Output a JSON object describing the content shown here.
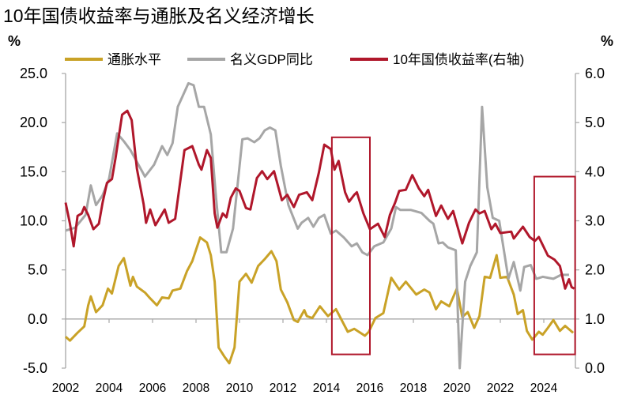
{
  "chart_data": {
    "type": "line",
    "title": "10年国债收益率与通胀及名义经济增长",
    "ylabel_left": "%",
    "ylabel_right": "%",
    "ylim_left": [
      -5,
      25
    ],
    "ylim_right": [
      0,
      6
    ],
    "yticks_left": [
      "25.0",
      "20.0",
      "15.0",
      "10.0",
      "5.0",
      "0.0",
      "-5.0"
    ],
    "yticks_right": [
      "6.0",
      "5.0",
      "4.0",
      "3.0",
      "2.0",
      "1.0",
      "0.0"
    ],
    "xlim": [
      2002,
      2025.45
    ],
    "xticks": [
      "2002",
      "2004",
      "2006",
      "2008",
      "2010",
      "2012",
      "2014",
      "2016",
      "2018",
      "2020",
      "2022",
      "2024"
    ],
    "grid": false,
    "legend_position": "top",
    "series": [
      {
        "name": "通胀水平",
        "axis": "left",
        "color": "#C9A227",
        "points": [
          [
            2002.0,
            -1.8
          ],
          [
            2002.2,
            -2.2
          ],
          [
            2002.55,
            -1.4
          ],
          [
            2002.86,
            -0.75
          ],
          [
            2003.04,
            1.4
          ],
          [
            2003.16,
            2.3
          ],
          [
            2003.4,
            0.7
          ],
          [
            2003.7,
            1.4
          ],
          [
            2003.95,
            3.1
          ],
          [
            2004.13,
            2.6
          ],
          [
            2004.44,
            5.4
          ],
          [
            2004.68,
            6.2
          ],
          [
            2004.98,
            3.4
          ],
          [
            2005.1,
            4.3
          ],
          [
            2005.28,
            3.3
          ],
          [
            2005.65,
            2.7
          ],
          [
            2005.89,
            2.1
          ],
          [
            2006.2,
            1.4
          ],
          [
            2006.44,
            2.2
          ],
          [
            2006.74,
            2.1
          ],
          [
            2006.92,
            2.9
          ],
          [
            2007.28,
            3.1
          ],
          [
            2007.59,
            4.9
          ],
          [
            2007.83,
            5.9
          ],
          [
            2008.19,
            8.3
          ],
          [
            2008.5,
            7.8
          ],
          [
            2008.68,
            6.5
          ],
          [
            2008.86,
            3.8
          ],
          [
            2009.04,
            -2.9
          ],
          [
            2009.3,
            -3.8
          ],
          [
            2009.53,
            -4.5
          ],
          [
            2009.77,
            -2.9
          ],
          [
            2010.0,
            3.8
          ],
          [
            2010.3,
            4.6
          ],
          [
            2010.56,
            3.7
          ],
          [
            2010.86,
            5.4
          ],
          [
            2011.16,
            6.1
          ],
          [
            2011.47,
            6.9
          ],
          [
            2011.7,
            5.9
          ],
          [
            2011.9,
            3.0
          ],
          [
            2012.2,
            1.7
          ],
          [
            2012.5,
            -0.1
          ],
          [
            2012.68,
            -0.3
          ],
          [
            2012.98,
            0.9
          ],
          [
            2013.1,
            0.3
          ],
          [
            2013.35,
            0.1
          ],
          [
            2013.7,
            1.3
          ],
          [
            2014.07,
            0.3
          ],
          [
            2014.44,
            1.0
          ],
          [
            2014.98,
            -1.3
          ],
          [
            2015.28,
            -1.0
          ],
          [
            2015.77,
            -1.7
          ],
          [
            2015.95,
            -1.3
          ],
          [
            2016.25,
            0.1
          ],
          [
            2016.62,
            0.6
          ],
          [
            2016.98,
            4.2
          ],
          [
            2017.35,
            3.0
          ],
          [
            2017.65,
            3.8
          ],
          [
            2018.13,
            2.5
          ],
          [
            2018.5,
            3.0
          ],
          [
            2018.74,
            2.7
          ],
          [
            2019.04,
            1.0
          ],
          [
            2019.28,
            1.8
          ],
          [
            2019.65,
            1.3
          ],
          [
            2020.0,
            3.1
          ],
          [
            2020.25,
            0.2
          ],
          [
            2020.5,
            0.7
          ],
          [
            2020.8,
            -0.9
          ],
          [
            2021.04,
            0.3
          ],
          [
            2021.28,
            4.3
          ],
          [
            2021.53,
            4.2
          ],
          [
            2021.83,
            6.5
          ],
          [
            2022.0,
            4.2
          ],
          [
            2022.31,
            4.3
          ],
          [
            2022.62,
            2.5
          ],
          [
            2022.8,
            0.5
          ],
          [
            2023.04,
            0.9
          ],
          [
            2023.22,
            -1.2
          ],
          [
            2023.47,
            -2.1
          ],
          [
            2023.77,
            -1.3
          ],
          [
            2023.95,
            -1.6
          ],
          [
            2024.19,
            -0.9
          ],
          [
            2024.44,
            -0.1
          ],
          [
            2024.74,
            -1.2
          ],
          [
            2024.98,
            -0.7
          ],
          [
            2025.35,
            -1.4
          ]
        ]
      },
      {
        "name": "名义GDP同比",
        "axis": "left",
        "color": "#A6A6A6",
        "points": [
          [
            2002.0,
            9.0
          ],
          [
            2002.44,
            9.3
          ],
          [
            2002.92,
            10.6
          ],
          [
            2003.16,
            13.6
          ],
          [
            2003.4,
            11.6
          ],
          [
            2003.7,
            12.6
          ],
          [
            2004.0,
            14.3
          ],
          [
            2004.37,
            18.9
          ],
          [
            2004.68,
            18.1
          ],
          [
            2004.98,
            17.2
          ],
          [
            2005.65,
            14.5
          ],
          [
            2006.07,
            15.7
          ],
          [
            2006.44,
            17.6
          ],
          [
            2006.68,
            16.7
          ],
          [
            2006.92,
            17.9
          ],
          [
            2007.16,
            21.6
          ],
          [
            2007.65,
            24.0
          ],
          [
            2007.89,
            23.8
          ],
          [
            2008.13,
            21.6
          ],
          [
            2008.37,
            21.6
          ],
          [
            2008.68,
            18.8
          ],
          [
            2008.92,
            12.4
          ],
          [
            2009.16,
            6.8
          ],
          [
            2009.4,
            6.8
          ],
          [
            2009.7,
            9.2
          ],
          [
            2010.13,
            18.3
          ],
          [
            2010.37,
            18.4
          ],
          [
            2010.68,
            18.0
          ],
          [
            2010.92,
            18.4
          ],
          [
            2011.16,
            19.2
          ],
          [
            2011.4,
            19.5
          ],
          [
            2011.65,
            19.2
          ],
          [
            2011.9,
            15.6
          ],
          [
            2012.25,
            11.6
          ],
          [
            2012.68,
            9.2
          ],
          [
            2012.86,
            9.8
          ],
          [
            2013.16,
            10.3
          ],
          [
            2013.4,
            9.4
          ],
          [
            2013.65,
            10.3
          ],
          [
            2013.9,
            10.6
          ],
          [
            2014.2,
            8.7
          ],
          [
            2014.44,
            9.0
          ],
          [
            2014.8,
            8.3
          ],
          [
            2015.16,
            7.4
          ],
          [
            2015.4,
            7.7
          ],
          [
            2015.65,
            6.8
          ],
          [
            2015.89,
            6.5
          ],
          [
            2016.2,
            7.4
          ],
          [
            2016.62,
            7.8
          ],
          [
            2016.98,
            9.2
          ],
          [
            2017.2,
            11.4
          ],
          [
            2017.4,
            11.1
          ],
          [
            2017.89,
            11.1
          ],
          [
            2018.37,
            10.8
          ],
          [
            2018.74,
            10.0
          ],
          [
            2018.92,
            9.7
          ],
          [
            2019.16,
            7.7
          ],
          [
            2019.35,
            7.8
          ],
          [
            2019.59,
            7.3
          ],
          [
            2019.95,
            7.0
          ],
          [
            2020.13,
            -5.0
          ],
          [
            2020.38,
            3.8
          ],
          [
            2020.62,
            5.4
          ],
          [
            2020.92,
            6.8
          ],
          [
            2021.16,
            21.6
          ],
          [
            2021.4,
            13.4
          ],
          [
            2021.65,
            10.3
          ],
          [
            2021.95,
            10.0
          ],
          [
            2022.37,
            4.1
          ],
          [
            2022.62,
            5.8
          ],
          [
            2022.92,
            2.9
          ],
          [
            2023.1,
            5.3
          ],
          [
            2023.4,
            5.5
          ],
          [
            2023.65,
            4.1
          ],
          [
            2023.95,
            4.3
          ],
          [
            2024.44,
            4.1
          ],
          [
            2024.8,
            4.5
          ],
          [
            2025.16,
            4.5
          ]
        ]
      },
      {
        "name": "10年国债收益率(右轴)",
        "axis": "right",
        "color": "#B0172B",
        "points": [
          [
            2002.0,
            3.37
          ],
          [
            2002.2,
            2.94
          ],
          [
            2002.37,
            2.48
          ],
          [
            2002.55,
            3.1
          ],
          [
            2002.74,
            3.15
          ],
          [
            2002.86,
            3.28
          ],
          [
            2003.04,
            3.12
          ],
          [
            2003.28,
            2.83
          ],
          [
            2003.53,
            2.94
          ],
          [
            2003.7,
            3.37
          ],
          [
            2003.9,
            3.77
          ],
          [
            2004.13,
            3.85
          ],
          [
            2004.3,
            4.28
          ],
          [
            2004.6,
            5.16
          ],
          [
            2004.84,
            5.24
          ],
          [
            2005.04,
            5.05
          ],
          [
            2005.28,
            4.06
          ],
          [
            2005.59,
            3.34
          ],
          [
            2005.7,
            2.96
          ],
          [
            2005.89,
            3.23
          ],
          [
            2006.13,
            2.91
          ],
          [
            2006.56,
            3.23
          ],
          [
            2006.74,
            2.96
          ],
          [
            2007.04,
            3.04
          ],
          [
            2007.47,
            4.44
          ],
          [
            2007.83,
            4.52
          ],
          [
            2008.13,
            4.14
          ],
          [
            2008.25,
            4.04
          ],
          [
            2008.5,
            4.44
          ],
          [
            2008.68,
            4.28
          ],
          [
            2008.86,
            3.15
          ],
          [
            2008.98,
            2.86
          ],
          [
            2009.23,
            3.15
          ],
          [
            2009.4,
            3.07
          ],
          [
            2009.6,
            3.47
          ],
          [
            2009.83,
            3.66
          ],
          [
            2010.0,
            3.61
          ],
          [
            2010.3,
            3.26
          ],
          [
            2010.5,
            3.23
          ],
          [
            2010.8,
            3.87
          ],
          [
            2011.04,
            4.01
          ],
          [
            2011.28,
            3.85
          ],
          [
            2011.59,
            4.01
          ],
          [
            2011.95,
            3.42
          ],
          [
            2012.2,
            3.53
          ],
          [
            2012.5,
            3.28
          ],
          [
            2012.74,
            3.53
          ],
          [
            2013.1,
            3.58
          ],
          [
            2013.35,
            3.42
          ],
          [
            2013.65,
            3.98
          ],
          [
            2013.9,
            4.55
          ],
          [
            2014.2,
            4.46
          ],
          [
            2014.37,
            4.04
          ],
          [
            2014.56,
            4.22
          ],
          [
            2014.86,
            3.58
          ],
          [
            2015.04,
            3.39
          ],
          [
            2015.28,
            3.53
          ],
          [
            2015.4,
            3.58
          ],
          [
            2015.7,
            3.15
          ],
          [
            2016.0,
            2.83
          ],
          [
            2016.37,
            2.94
          ],
          [
            2016.68,
            2.67
          ],
          [
            2016.92,
            3.12
          ],
          [
            2017.16,
            3.37
          ],
          [
            2017.35,
            3.61
          ],
          [
            2017.65,
            3.63
          ],
          [
            2017.95,
            3.93
          ],
          [
            2018.25,
            3.66
          ],
          [
            2018.5,
            3.5
          ],
          [
            2018.68,
            3.63
          ],
          [
            2019.04,
            3.1
          ],
          [
            2019.28,
            3.31
          ],
          [
            2019.59,
            3.04
          ],
          [
            2019.83,
            3.2
          ],
          [
            2020.25,
            2.54
          ],
          [
            2020.56,
            2.96
          ],
          [
            2020.86,
            3.23
          ],
          [
            2021.04,
            3.15
          ],
          [
            2021.28,
            3.2
          ],
          [
            2021.59,
            2.83
          ],
          [
            2021.77,
            2.94
          ],
          [
            2022.0,
            2.75
          ],
          [
            2022.5,
            2.78
          ],
          [
            2022.62,
            2.64
          ],
          [
            2023.04,
            2.88
          ],
          [
            2023.35,
            2.67
          ],
          [
            2023.59,
            2.59
          ],
          [
            2023.77,
            2.67
          ],
          [
            2024.19,
            2.29
          ],
          [
            2024.49,
            2.21
          ],
          [
            2024.74,
            2.08
          ],
          [
            2024.98,
            1.62
          ],
          [
            2025.16,
            1.81
          ],
          [
            2025.28,
            1.65
          ],
          [
            2025.4,
            1.62
          ]
        ]
      }
    ],
    "annotations": [
      {
        "type": "box",
        "color": "#B0172B",
        "x": [
          2014.25,
          2016.0
        ],
        "y_left": [
          -3.6,
          18.5
        ]
      },
      {
        "type": "box",
        "color": "#B0172B",
        "x": [
          2023.56,
          2025.44
        ],
        "y_left": [
          -3.6,
          14.5
        ]
      }
    ]
  }
}
